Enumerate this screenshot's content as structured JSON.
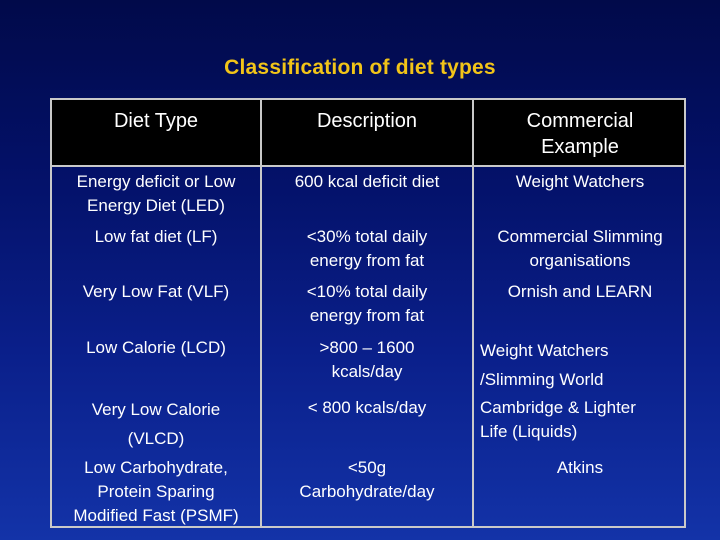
{
  "title": "Classification of diet types",
  "table": {
    "headers": [
      "Diet Type",
      "Description",
      "Commercial\nExample"
    ],
    "rows": [
      [
        "Energy deficit or Low\nEnergy Diet (LED)",
        "600 kcal deficit diet",
        "Weight Watchers"
      ],
      [
        "Low fat diet (LF)",
        "<30% total daily\nenergy from fat",
        "Commercial Slimming\norganisations"
      ],
      [
        "Very Low Fat (VLF)",
        "<10% total daily\nenergy from fat",
        "Ornish and LEARN"
      ],
      [
        "Low Calorie (LCD)",
        ">800 – 1600\nkcals/day",
        "Weight Watchers\n/Slimming World"
      ],
      [
        "Very Low Calorie\n(VLCD)",
        "< 800 kcals/day",
        "Cambridge & Lighter\nLife (Liquids)"
      ],
      [
        "Low Carbohydrate,\nProtein Sparing\nModified Fast (PSMF)",
        "<50g\nCarbohydrate/day",
        "Atkins"
      ]
    ]
  }
}
